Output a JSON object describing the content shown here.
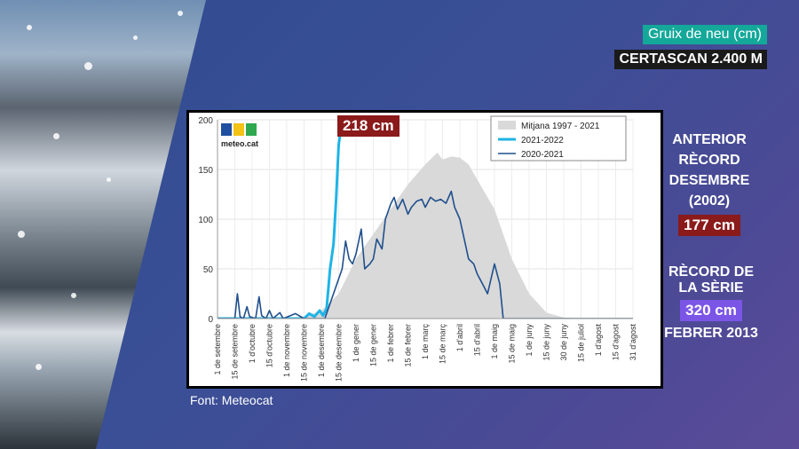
{
  "header": {
    "title": "Gruix de neu (cm)",
    "station": "CERTASCAN 2.400 M"
  },
  "previous_record": {
    "label_lines": [
      "ANTERIOR",
      "RÈCORD",
      "DESEMBRE (2002)"
    ],
    "value": "177 cm"
  },
  "series_record": {
    "label_lines": [
      "RÈCORD DE",
      "LA SÈRIE"
    ],
    "value": "320 cm",
    "date": "FEBRER 2013"
  },
  "current_badge": "218 cm",
  "source": "Font: Meteocat",
  "logo_text": "meteo.cat",
  "colors": {
    "mean_fill": "#d9d9d9",
    "s2122": "#1eb4e6",
    "s2021": "#1f4f8c",
    "badge_red": "#8b1a1a",
    "badge_purple": "#7b55e6",
    "teal": "#14a89a"
  },
  "chart_data": {
    "type": "area",
    "ylim": [
      0,
      200
    ],
    "yticks": [
      0,
      50,
      100,
      150,
      200
    ],
    "xticks": [
      "1 de setembre",
      "15 de setembre",
      "1 d'octubre",
      "15 d'octubre",
      "1 de novembre",
      "15 de novembre",
      "1 de desembre",
      "15 de desembre",
      "1 de gener",
      "15 de gener",
      "1 de febrer",
      "15 de febrer",
      "1 de març",
      "15 de març",
      "1 d'abril",
      "15 d'abril",
      "1 de maig",
      "15 de maig",
      "1 de juny",
      "15 de juny",
      "30 de juny",
      "15 de juliol",
      "1 d'agost",
      "15 d'agost",
      "31 d'agost"
    ],
    "legend": [
      "Mitjana  1997 - 2021",
      "2021-2022",
      "2020-2021"
    ],
    "legend_position": "top-right",
    "series": [
      {
        "name": "Mitjana  1997 - 2021",
        "kind": "area",
        "points": [
          [
            0,
            0
          ],
          [
            4,
            0
          ],
          [
            5,
            2
          ],
          [
            6,
            8
          ],
          [
            7,
            25
          ],
          [
            8,
            60
          ],
          [
            9,
            85
          ],
          [
            10,
            110
          ],
          [
            11,
            135
          ],
          [
            12,
            155
          ],
          [
            12.7,
            167
          ],
          [
            13,
            160
          ],
          [
            13.5,
            163
          ],
          [
            14,
            162
          ],
          [
            14.5,
            155
          ],
          [
            15,
            140
          ],
          [
            16,
            110
          ],
          [
            17,
            60
          ],
          [
            18,
            25
          ],
          [
            19,
            6
          ],
          [
            20,
            1
          ],
          [
            21,
            0
          ],
          [
            24,
            0
          ]
        ]
      },
      {
        "name": "2021-2022",
        "kind": "line",
        "points": [
          [
            0,
            0
          ],
          [
            4,
            0
          ],
          [
            5,
            0
          ],
          [
            5.3,
            5
          ],
          [
            5.6,
            2
          ],
          [
            5.9,
            8
          ],
          [
            6.1,
            3
          ],
          [
            6.3,
            10
          ],
          [
            6.5,
            50
          ],
          [
            6.7,
            75
          ],
          [
            6.85,
            120
          ],
          [
            7.0,
            175
          ],
          [
            7.2,
            200
          ],
          [
            7.25,
            218
          ]
        ]
      },
      {
        "name": "2020-2021",
        "kind": "line",
        "points": [
          [
            0,
            0
          ],
          [
            1,
            0
          ],
          [
            1.15,
            25
          ],
          [
            1.3,
            2
          ],
          [
            1.5,
            0
          ],
          [
            1.7,
            12
          ],
          [
            1.85,
            2
          ],
          [
            2.2,
            0
          ],
          [
            2.4,
            22
          ],
          [
            2.55,
            3
          ],
          [
            2.8,
            0
          ],
          [
            3.0,
            8
          ],
          [
            3.2,
            0
          ],
          [
            3.6,
            6
          ],
          [
            3.8,
            0
          ],
          [
            4.5,
            5
          ],
          [
            5.0,
            0
          ],
          [
            6.2,
            0
          ],
          [
            7.2,
            50
          ],
          [
            7.4,
            78
          ],
          [
            7.6,
            60
          ],
          [
            7.8,
            55
          ],
          [
            8.0,
            65
          ],
          [
            8.3,
            90
          ],
          [
            8.5,
            50
          ],
          [
            8.8,
            55
          ],
          [
            9.0,
            60
          ],
          [
            9.2,
            80
          ],
          [
            9.5,
            70
          ],
          [
            9.7,
            100
          ],
          [
            10.0,
            115
          ],
          [
            10.2,
            122
          ],
          [
            10.4,
            110
          ],
          [
            10.7,
            120
          ],
          [
            11.0,
            105
          ],
          [
            11.2,
            112
          ],
          [
            11.5,
            118
          ],
          [
            11.8,
            120
          ],
          [
            12.0,
            112
          ],
          [
            12.3,
            122
          ],
          [
            12.6,
            118
          ],
          [
            12.9,
            120
          ],
          [
            13.2,
            116
          ],
          [
            13.5,
            128
          ],
          [
            13.7,
            112
          ],
          [
            14.0,
            100
          ],
          [
            14.5,
            60
          ],
          [
            14.8,
            55
          ],
          [
            15.0,
            45
          ],
          [
            15.3,
            35
          ],
          [
            15.6,
            25
          ],
          [
            16.0,
            55
          ],
          [
            16.3,
            35
          ],
          [
            16.5,
            0
          ],
          [
            24,
            0
          ]
        ]
      }
    ]
  }
}
